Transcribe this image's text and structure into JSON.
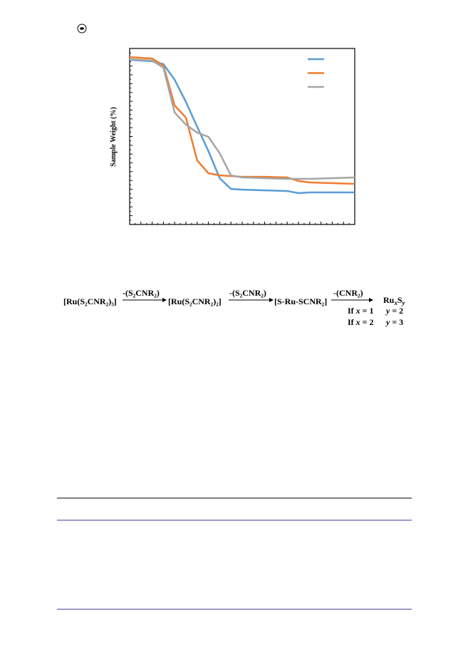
{
  "chart_data": {
    "type": "line",
    "ylabel": "Sample Weight (%)",
    "x": [
      0,
      10,
      15,
      20,
      25,
      30,
      35,
      40,
      45,
      50,
      60,
      70,
      75,
      80,
      90,
      100
    ],
    "xlim": [
      0,
      100
    ],
    "ylim": [
      0,
      100
    ],
    "series": [
      {
        "color": "#5b9bd5",
        "values": [
          93.5,
          92.7,
          91.1,
          82.2,
          69.6,
          55.5,
          41.7,
          26.3,
          20.2,
          19.8,
          19.4,
          19.0,
          17.8,
          18.2,
          18.2,
          18.2
        ]
      },
      {
        "color": "#ed7d31",
        "values": [
          95.1,
          94.3,
          90.3,
          67.6,
          60.7,
          36.4,
          29.1,
          27.9,
          27.5,
          27.1,
          27.1,
          26.7,
          24.7,
          23.9,
          23.5,
          23.1
        ]
      },
      {
        "color": "#a5a5a5",
        "values": [
          93.9,
          93.1,
          89.1,
          63.6,
          56.7,
          52.2,
          49.8,
          40.5,
          27.9,
          26.7,
          26.3,
          25.9,
          25.9,
          25.9,
          26.3,
          26.7
        ]
      }
    ]
  },
  "scheme": {
    "species": [
      "[Ru(S₂CNR₂)₃]",
      "[Ru(S₂CNR₂)₂]",
      "[S-Ru-SCNR₂]"
    ],
    "arrows": [
      "-(S₂CNR₂)",
      "-(S₂CNR₂)",
      "-(CNR₂)"
    ],
    "product": [
      "Ru",
      "x",
      "S",
      "y"
    ],
    "conditions": [
      [
        "If ",
        "x",
        " = 1",
        "y",
        " = 2"
      ],
      [
        "If ",
        "x",
        " = 2",
        "y",
        " = 3"
      ]
    ]
  }
}
